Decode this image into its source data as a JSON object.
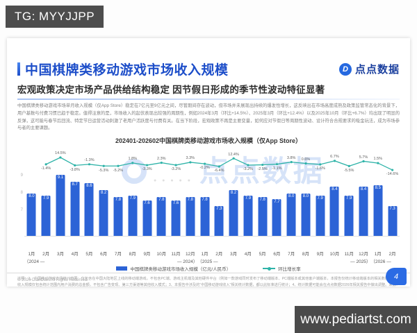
{
  "badge": {
    "text": "TG: MYYJJPP"
  },
  "watermark_bar": {
    "text": "www.pediartst.com"
  },
  "slide": {
    "header": {
      "title": "中国棋牌类移动游戏市场收入规模",
      "logo_text": "点点数据",
      "logo_icon": "D",
      "subtitle": "宏观政策决定市场产品供给结构稳定 因节假日形成的季节性波动特征显著"
    },
    "body_paragraph": "中国棋牌类移动游戏市场单月收入规模（仅App Store）稳定在7亿元至9亿元之间，尽管期间存在波动，但市场并未展现出持续的爆发性增长，这反映出在市场高度成熟及政策监管常态化的背景下，用户基数与付费习惯已趋于稳定。值得注意的是，市场收入的起伏表现出较强的周期性，例如2024年3月（环比+14.5%）、2025年3月（环比+12.4%）以及2025年10月（环比+6.7%）均出现了明显的反弹，这可能与春节后回流、特定节日运营活动刺激了老用户活跃度与付费有关。在当下阶段，宏观政策不再是主要变量，如何应对节假日等周期性波动、设计符合合规要求的吸金玩法，成为市场参与者的主要课题。",
    "chart_watermark_text": "点点数据",
    "footnote": "注释：1、中国移动游戏市场统计范围：仅包含在中国大陆地区上线的移动端游戏，不包含PC端、游戏主机端及其他硬件平台（例如一款游戏同时发布了移动端版本、PC端版本或其他客户端版本，本报告仅统计移动端版本的相关数据）；2、收入规模仅包含统计范围内用户消费的总金额，不包含广告变现、第三方渠道等其他收入模式；3、本报告中涉及的“中国移动游戏收入”相关统计数据，都以此标准进行统计；4、统计数据可能会在点点数据2026年相关报告中做出调整。来源：中国移动游戏市场收入规模是结合了点点数据、企业财报、专家访谈，根据点点数据统计模型核算所得。",
    "footer": {
      "copyright": "© 2026 DianDian.All Rights Reserved.",
      "page": "4"
    }
  },
  "chart_data": {
    "type": "bar",
    "title": "202401-202602中国棋牌类移动游戏市场收入规模（仅App Store）",
    "legend": [
      {
        "label": "中国棋牌类移动游戏市场收入规模（亿元/人民币）",
        "color": "#2c63d6",
        "type": "bar"
      },
      {
        "label": "环比增长率",
        "color": "#2eb3a8",
        "type": "line"
      }
    ],
    "months": [
      "1月",
      "2月",
      "3月",
      "4月",
      "5月",
      "6月",
      "7月",
      "8月",
      "9月",
      "10月",
      "11月",
      "12月",
      "1月",
      "2月",
      "3月",
      "4月",
      "5月",
      "6月",
      "7月",
      "8月",
      "9月",
      "10月",
      "11月",
      "12月",
      "1月",
      "2月"
    ],
    "year_groups": [
      {
        "open": "（2024 —",
        "close": "— 2024）",
        "start": 0,
        "count": 12
      },
      {
        "open": "（2025 —",
        "close": "— 2025）",
        "start": 12,
        "count": 12
      },
      {
        "open": "（2026 —",
        "close": "",
        "start": 24,
        "count": 2
      }
    ],
    "revenue": [
      8.0,
      7.9,
      9.1,
      8.7,
      8.6,
      8.2,
      7.8,
      7.9,
      7.6,
      7.8,
      7.6,
      7.8,
      7.8,
      7.3,
      8.2,
      7.9,
      7.8,
      7.7,
      8.0,
      8.0,
      7.9,
      8.4,
      7.9,
      8.4,
      8.5,
      7.3
    ],
    "mom_growth": [
      null,
      -1.4,
      14.5,
      -3.8,
      -1.3,
      -5.3,
      -5.2,
      1.8,
      -3.3,
      2.3,
      -3.2,
      3.3,
      -0.2,
      -6.4,
      12.4,
      -3.2,
      -2.5,
      -1.1,
      3.8,
      0.6,
      -1.6,
      6.7,
      -5.5,
      5.7,
      1.5,
      -14.6
    ],
    "mom_label_pos": [
      null,
      "below",
      "above",
      "below",
      "above",
      "below",
      "below",
      "above",
      "below",
      "above",
      "below",
      "above",
      "below",
      "below",
      "above",
      "below",
      "below",
      "below",
      "above",
      "above",
      "below",
      "above",
      "below",
      "above",
      "above",
      "below"
    ],
    "y_axis": {
      "ticks": [
        9,
        8,
        7
      ],
      "baseline_value": 5.55
    },
    "ylabel": "亿元/人民币",
    "grid": false,
    "legend_position": "bottom"
  }
}
